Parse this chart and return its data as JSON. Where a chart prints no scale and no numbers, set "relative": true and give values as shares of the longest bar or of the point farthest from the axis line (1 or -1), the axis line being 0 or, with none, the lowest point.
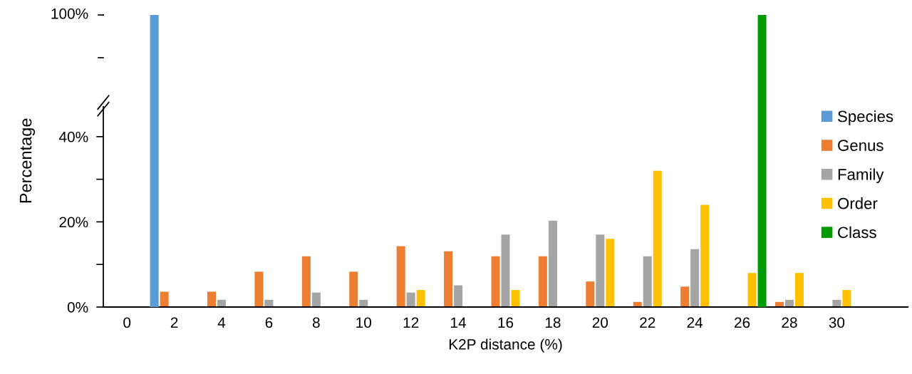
{
  "chart_data": [
    {
      "type": "bar",
      "relative": true,
      "categories": [
        "0",
        "2",
        "4",
        "6",
        "8",
        "10",
        "12",
        "14",
        "16",
        "18",
        "20",
        "22",
        "24",
        "26",
        "28",
        "30",
        null
      ],
      "series": [
        {
          "name": "Species",
          "color": "#5b9bd5",
          "values": [
            null,
            1,
            null,
            null,
            null,
            null,
            null,
            null,
            null,
            null,
            null,
            null,
            null,
            null,
            null,
            null,
            null
          ]
        },
        {
          "values": [
            null,
            null,
            null,
            null,
            null,
            null,
            null,
            null,
            null,
            null,
            null,
            null,
            null,
            null,
            null,
            null,
            null
          ]
        },
        {
          "values": [
            null,
            null,
            null,
            null,
            null,
            null,
            null,
            null,
            null,
            null,
            null,
            null,
            null,
            null,
            null,
            null,
            null
          ]
        },
        {
          "values": [
            null,
            null,
            null,
            null,
            null,
            null,
            null,
            null,
            null,
            null,
            null,
            null,
            null,
            null,
            null,
            null,
            null
          ]
        },
        {
          "name": "Class",
          "color": "#009900",
          "values": [
            null,
            null,
            null,
            null,
            null,
            null,
            null,
            null,
            null,
            null,
            null,
            null,
            null,
            1,
            null,
            null,
            null
          ]
        }
      ],
      "annotations": [
        "100%"
      ],
      "tick_labels": false,
      "legend": "right"
    },
    {
      "type": "bar",
      "categories": [
        "0",
        "2",
        "4",
        "6",
        "8",
        "10",
        "12",
        "14",
        "16",
        "18",
        "20",
        "22",
        "24",
        "26",
        "28",
        "30",
        null
      ],
      "xlabel": "K2P distance (%)",
      "ylabel": "Percentage",
      "series": [
        {
          "values": [
            null,
            null,
            null,
            null,
            null,
            null,
            null,
            null,
            null,
            null,
            null,
            null,
            null,
            null,
            null,
            null,
            null
          ]
        },
        {
          "name": "Genus",
          "color": "#ed7d31",
          "values": [
            null,
            3.6,
            3.6,
            8.3,
            11.9,
            8.3,
            14.3,
            13.1,
            11.9,
            11.9,
            6.0,
            1.2,
            4.8,
            null,
            1.2,
            null,
            null
          ]
        },
        {
          "name": "Family",
          "color": "#a5a5a5",
          "values": [
            null,
            null,
            1.7,
            1.7,
            3.4,
            1.7,
            3.4,
            5.1,
            17.0,
            20.3,
            17.0,
            11.9,
            13.6,
            null,
            1.7,
            1.7,
            null
          ]
        },
        {
          "name": "Order",
          "color": "#ffc000",
          "values": [
            null,
            null,
            null,
            null,
            null,
            null,
            4.0,
            null,
            4.0,
            null,
            16.0,
            32.0,
            24.0,
            8.0,
            8.0,
            4.0,
            null
          ]
        },
        {
          "values": [
            null,
            null,
            null,
            null,
            null,
            null,
            null,
            null,
            null,
            null,
            null,
            null,
            null,
            null,
            null,
            null,
            null
          ]
        }
      ],
      "ylim": [
        0,
        47
      ],
      "yticks": [
        {
          "value": 0,
          "label": "0%"
        },
        {
          "value": 10,
          "label": null
        },
        {
          "value": 20,
          "label": "20%"
        },
        {
          "value": 30,
          "label": null
        },
        {
          "value": 40,
          "label": "40%"
        }
      ],
      "grid": false,
      "legend": "right"
    }
  ]
}
